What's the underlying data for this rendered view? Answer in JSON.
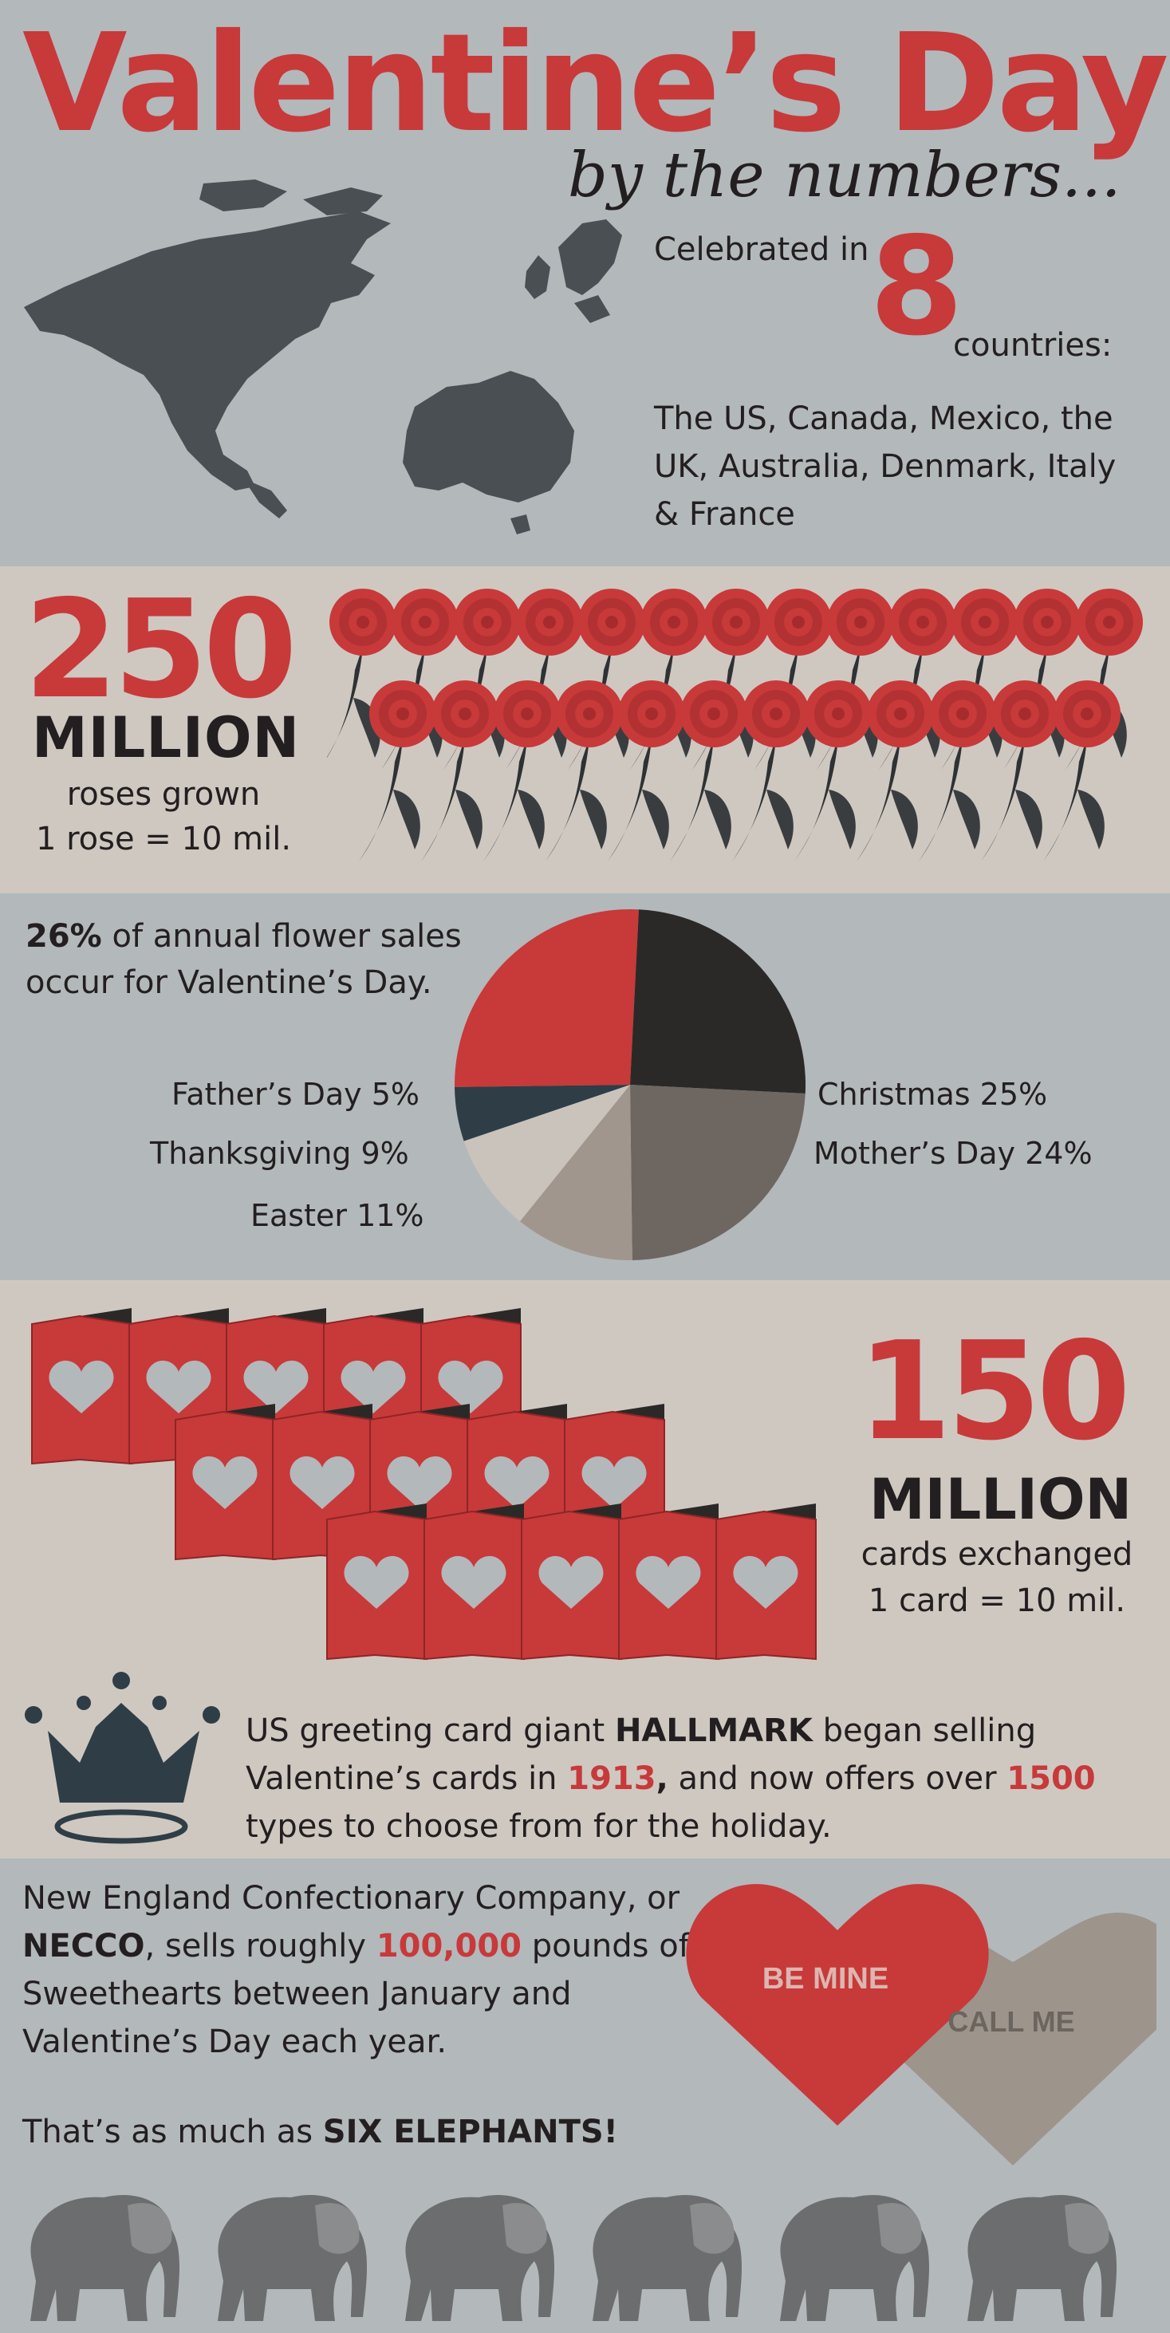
{
  "header": {
    "title": "Valentine’s Day",
    "subtitle": "by the numbers..."
  },
  "countries": {
    "celebrated_prefix": "Celebrated in",
    "count": "8",
    "suffix": "countries:",
    "list": "The US, Canada, Mexico, the UK, Australia, Denmark, Italy & France"
  },
  "roses": {
    "number": "250",
    "million": "MILLION",
    "label": "roses grown",
    "scale": "1 rose = 10 mil.",
    "count_icons": 25
  },
  "flowers": {
    "percent": "26%",
    "text": "of annual flower sales occur for Valentine’s Day."
  },
  "chart_data": {
    "type": "pie",
    "title": "",
    "slices": [
      {
        "label": "Valentine’s Day",
        "value": 26,
        "color": "#c8393a"
      },
      {
        "label": "Christmas",
        "value": 25,
        "color": "#2b2927"
      },
      {
        "label": "Mother’s Day",
        "value": 24,
        "color": "#6e6661"
      },
      {
        "label": "Easter",
        "value": 11,
        "color": "#a0968d"
      },
      {
        "label": "Thanksgiving",
        "value": 9,
        "color": "#c9c3bb"
      },
      {
        "label": "Father’s Day",
        "value": 5,
        "color": "#2f3d46"
      }
    ],
    "labels": {
      "fathers": "Father’s Day 5%",
      "thanksgiving": "Thanksgiving 9%",
      "easter": "Easter 11%",
      "christmas": "Christmas 25%",
      "mothers": "Mother’s Day 24%"
    }
  },
  "cards": {
    "number": "150",
    "million": "MILLION",
    "label": "cards exchanged",
    "scale": "1 card = 10 mil.",
    "count_icons": 15
  },
  "hallmark": {
    "t1": "US greeting card giant ",
    "brand": "HALLMARK",
    "t2": " began selling Valentine’s cards in ",
    "year": "1913",
    "t3": ",",
    "t4": " and now offers over ",
    "count": "1500",
    "t5": " types to choose from for the holiday."
  },
  "necco": {
    "t1": "New England Confectionary Company, or ",
    "brand": "NECCO",
    "t2": ", sells roughly ",
    "amount": "100,000",
    "t3": " pounds of Sweethearts between January and Valentine’s Day each year.",
    "six_prefix": "That’s as much as ",
    "six_bold": "SIX ELEPHANTS!",
    "heart1": "BE MINE",
    "heart2": "CALL ME",
    "elephant_count": 6
  },
  "colors": {
    "red": "#c8393a",
    "dark": "#231f20",
    "grey_bg": "#b3b8bb",
    "beige_bg": "#cfc8c1",
    "map": "#4a4f54",
    "crown": "#2f3d46"
  }
}
